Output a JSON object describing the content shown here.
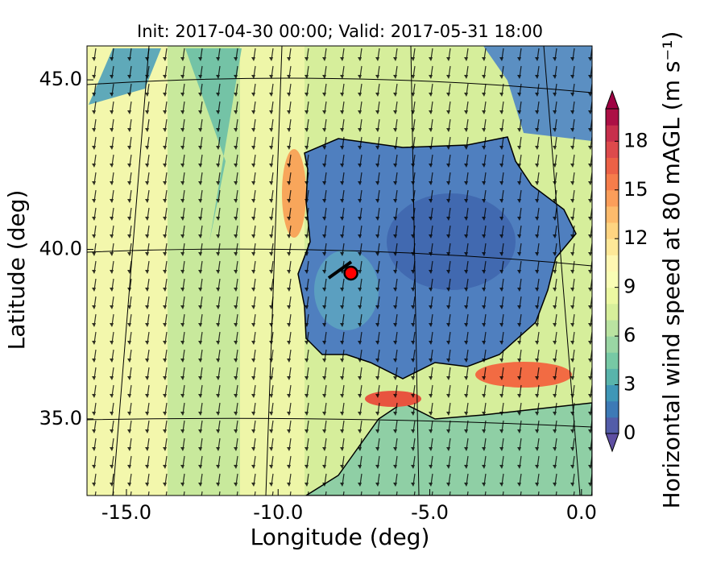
{
  "chart_data": {
    "type": "contour-map",
    "title": "Init: 2017-04-30 00:00; Valid: 2017-05-31 18:00",
    "xlabel": "Longitude (deg)",
    "ylabel": "Latitude (deg)",
    "xlim": [
      -16.3,
      0.35
    ],
    "ylim": [
      32.74,
      46.0
    ],
    "xticks": [
      {
        "value": -15,
        "label": "-15.0"
      },
      {
        "value": -10,
        "label": "-10.0"
      },
      {
        "value": -5,
        "label": "-5.0"
      },
      {
        "value": 0,
        "label": "0.0"
      }
    ],
    "yticks": [
      {
        "value": 35,
        "label": "35.0"
      },
      {
        "value": 40,
        "label": "40.0"
      },
      {
        "value": 45,
        "label": "45.0"
      }
    ],
    "marker": {
      "x": -7.6,
      "y": 39.3,
      "color": "#ff0000"
    },
    "colorbar": {
      "label": "Horizontal wind speed at 80 mAGL (m s⁻¹)",
      "lim": [
        0,
        20
      ],
      "level_step": 1,
      "ticks": [
        0,
        3,
        6,
        9,
        12,
        15,
        18
      ],
      "colormap": [
        "#5e4fa2",
        "#3288bd",
        "#66c2a5",
        "#abdda4",
        "#e6f598",
        "#ffffbf",
        "#fee08b",
        "#fdae61",
        "#f46d43",
        "#d53e4f",
        "#9e0142"
      ]
    }
  }
}
